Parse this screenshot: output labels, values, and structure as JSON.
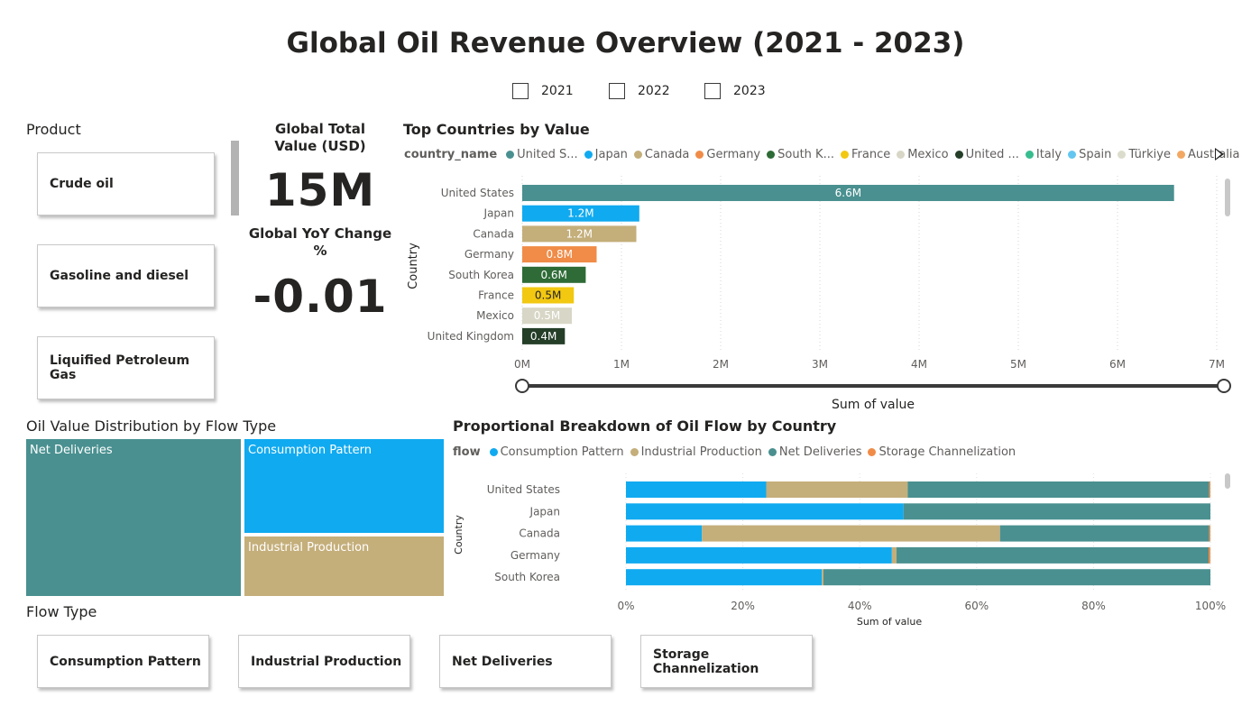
{
  "title": "Global Oil Revenue Overview (2021 - 2023)",
  "years": [
    "2021",
    "2022",
    "2023"
  ],
  "product_slicer": {
    "title": "Product",
    "items": [
      "Crude oil",
      "Gasoline and diesel",
      "Liquified Petroleum Gas"
    ]
  },
  "kpi": {
    "total_label": "Global Total Value (USD)",
    "total_value": "15M",
    "yoy_label": "Global YoY Change %",
    "yoy_value": "-0.01"
  },
  "top_countries": {
    "title": "Top Countries by Value",
    "legend_title": "country_name",
    "legend": [
      {
        "label": "United S...",
        "color": "#4a9090"
      },
      {
        "label": "Japan",
        "color": "#10aaf0"
      },
      {
        "label": "Canada",
        "color": "#c4ae7a"
      },
      {
        "label": "Germany",
        "color": "#f08c48"
      },
      {
        "label": "South K...",
        "color": "#2e6b36"
      },
      {
        "label": "France",
        "color": "#f2c811"
      },
      {
        "label": "Mexico",
        "color": "#d8d6c6"
      },
      {
        "label": "United ...",
        "color": "#243e28"
      },
      {
        "label": "Italy",
        "color": "#38bd8f"
      },
      {
        "label": "Spain",
        "color": "#63c6f0"
      },
      {
        "label": "Türkiye",
        "color": "#dcdccc"
      },
      {
        "label": "Australia",
        "color": "#f2a862"
      }
    ],
    "ylabel": "Country",
    "xlabel": "Sum of value"
  },
  "treemap": {
    "title": "Oil Value Distribution by Flow Type",
    "cells": [
      "Net Deliveries",
      "Consumption Pattern",
      "Industrial Production"
    ]
  },
  "flow_slicer": {
    "title": "Flow Type",
    "items": [
      "Consumption Pattern",
      "Industrial Production",
      "Net Deliveries",
      "Storage Channelization"
    ]
  },
  "breakdown": {
    "title": "Proportional Breakdown of Oil Flow by Country",
    "legend_title": "flow",
    "legend": [
      {
        "label": "Consumption Pattern",
        "color": "#10aaf0"
      },
      {
        "label": "Industrial Production",
        "color": "#c4ae7a"
      },
      {
        "label": "Net Deliveries",
        "color": "#4a9090"
      },
      {
        "label": "Storage Channelization",
        "color": "#f08c48"
      }
    ],
    "ylabel": "Country",
    "xlabel": "Sum of value"
  },
  "chart_data": [
    {
      "type": "bar",
      "title": "Top Countries by Value",
      "orientation": "horizontal",
      "categories": [
        "United States",
        "Japan",
        "Canada",
        "Germany",
        "South Korea",
        "France",
        "Mexico",
        "United Kingdom"
      ],
      "values": [
        6.57,
        1.18,
        1.15,
        0.75,
        0.64,
        0.52,
        0.5,
        0.43
      ],
      "data_labels": [
        "6.6M",
        "1.2M",
        "1.2M",
        "0.8M",
        "0.6M",
        "0.5M",
        "0.5M",
        "0.4M"
      ],
      "colors": [
        "#4a9090",
        "#10aaf0",
        "#c4ae7a",
        "#f08c48",
        "#2e6b36",
        "#f2c811",
        "#d8d6c6",
        "#243e28"
      ],
      "label_colors": [
        "#ffffff",
        "#ffffff",
        "#ffffff",
        "#ffffff",
        "#ffffff",
        "#252423",
        "#ffffff",
        "#ffffff"
      ],
      "xticks": [
        "0M",
        "1M",
        "2M",
        "3M",
        "4M",
        "5M",
        "6M",
        "7M"
      ],
      "xlim": [
        0,
        7
      ],
      "xlabel": "Sum of value",
      "ylabel": "Country"
    },
    {
      "type": "bar",
      "title": "Proportional Breakdown of Oil Flow by Country",
      "orientation": "horizontal",
      "stacked": "100%",
      "categories": [
        "United States",
        "Japan",
        "Canada",
        "Germany",
        "South Korea"
      ],
      "series": [
        {
          "name": "Consumption Pattern",
          "color": "#10aaf0",
          "values": [
            24.0,
            47.5,
            13.0,
            45.5,
            33.5
          ]
        },
        {
          "name": "Industrial Production",
          "color": "#c4ae7a",
          "values": [
            24.2,
            0.0,
            51.0,
            0.8,
            0.3
          ]
        },
        {
          "name": "Net Deliveries",
          "color": "#4a9090",
          "values": [
            51.6,
            52.5,
            35.8,
            53.4,
            66.2
          ]
        },
        {
          "name": "Storage Channelization",
          "color": "#f08c48",
          "values": [
            0.2,
            0.0,
            0.2,
            0.3,
            0.0
          ]
        }
      ],
      "xticks": [
        "0%",
        "20%",
        "40%",
        "60%",
        "80%",
        "100%"
      ],
      "xlim": [
        0,
        100
      ],
      "xlabel": "Sum of value",
      "ylabel": "Country"
    }
  ]
}
